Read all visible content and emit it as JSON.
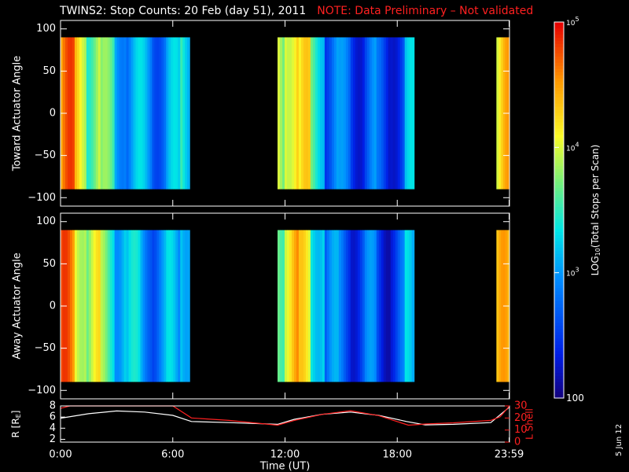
{
  "title": "TWINS2: Stop Counts: 20 Feb (day  51), 2011",
  "note": "NOTE: Data Preliminary – Not validated",
  "date_stamp": "5 Jun 12",
  "colors": {
    "note": "#ff2020",
    "r_line": "#ffffff",
    "lshell_line": "#ff2020"
  },
  "chart_data": [
    {
      "type": "heatmap",
      "name": "toward",
      "ylabel": "Toward Actuator Angle",
      "ylim": [
        -110,
        110
      ],
      "yticks": [
        100,
        50,
        0,
        -50,
        -100
      ],
      "xlim_hours": [
        0,
        24
      ],
      "data_yrange": [
        -90,
        90
      ],
      "segments_hours": [
        [
          0.0,
          6.9
        ],
        [
          11.6,
          18.9
        ],
        [
          23.3,
          24.0
        ]
      ],
      "profile_log10": [
        4.5,
        4.2,
        3.8,
        3.5,
        3.2,
        3.0,
        3.0,
        2.9,
        3.0,
        3.4,
        3.0,
        2.9,
        3.1,
        3.6,
        3.3,
        4.1,
        3.9,
        4.3,
        4.0,
        3.5,
        2.8,
        2.7,
        2.6,
        2.7,
        2.5,
        2.6,
        3.0,
        2.4,
        2.6,
        2.8,
        3.3,
        3.6,
        3.9,
        4.2
      ]
    },
    {
      "type": "heatmap",
      "name": "away",
      "ylabel": "Away Actuator Angle",
      "ylim": [
        -110,
        110
      ],
      "yticks": [
        100,
        50,
        0,
        -50,
        -100
      ],
      "xlim_hours": [
        0,
        24
      ],
      "data_yrange": [
        -90,
        90
      ],
      "segments_hours": [
        [
          0.0,
          6.9
        ],
        [
          11.6,
          18.9
        ],
        [
          23.3,
          24.0
        ]
      ],
      "profile_log10": [
        4.5,
        4.2,
        3.9,
        3.6,
        3.3,
        3.1,
        3.0,
        2.9,
        3.0,
        3.4,
        3.1,
        2.9,
        3.1,
        3.6,
        3.3,
        4.1,
        3.9,
        4.3,
        4.0,
        3.5,
        2.8,
        2.7,
        2.6,
        2.7,
        2.5,
        2.6,
        3.0,
        2.4,
        2.6,
        2.8,
        3.3,
        3.6,
        3.9,
        4.2
      ]
    },
    {
      "type": "line",
      "name": "orbit",
      "ylabel_left": "R [R",
      "ylabel_left_sub": "E",
      "ylabel_left_end": "]",
      "ylabel_right": "L Shell",
      "ylim_left": [
        1.5,
        8
      ],
      "yticks_left": [
        8,
        6,
        4,
        2
      ],
      "ylim_right": [
        0,
        30
      ],
      "yticks_right": [
        30,
        20,
        10,
        0
      ],
      "xlabel": "Time (UT)",
      "xticks": [
        {
          "h": 0,
          "label": "0:00"
        },
        {
          "h": 6,
          "label": "6:00"
        },
        {
          "h": 12,
          "label": "12:00"
        },
        {
          "h": 18,
          "label": "18:00"
        },
        {
          "h": 23.98,
          "label": "23:59"
        }
      ],
      "r_series": {
        "x": [
          0,
          1.5,
          3,
          4.5,
          6,
          7,
          9,
          11.6,
          12.5,
          14,
          15.5,
          17,
          18.5,
          19.5,
          21,
          23,
          24
        ],
        "y": [
          5.8,
          6.6,
          7.1,
          6.9,
          6.3,
          5.2,
          5.0,
          4.7,
          5.6,
          6.5,
          6.9,
          6.3,
          5.2,
          4.6,
          4.7,
          5.0,
          7.8
        ]
      },
      "lshell_series": {
        "x": [
          0,
          0.5,
          6,
          7,
          9,
          11.6,
          12.5,
          14,
          15.5,
          17,
          18.6,
          19.5,
          21,
          23,
          23.5,
          24
        ],
        "y": [
          28,
          31,
          31,
          20,
          18,
          14,
          18,
          23,
          26,
          22,
          14,
          15,
          16,
          18,
          21,
          30
        ]
      }
    },
    {
      "type": "colorbar",
      "label_prefix": "LOG",
      "label_sub": "10",
      "label_rest": "(Total Stops per Scan)",
      "range_log10": [
        2,
        5
      ],
      "ticks": [
        {
          "v": 5,
          "label": "10",
          "sup": "5"
        },
        {
          "v": 4,
          "label": "10",
          "sup": "4"
        },
        {
          "v": 3,
          "label": "10",
          "sup": "3"
        },
        {
          "v": 2,
          "label": "100",
          "sup": ""
        }
      ]
    }
  ]
}
